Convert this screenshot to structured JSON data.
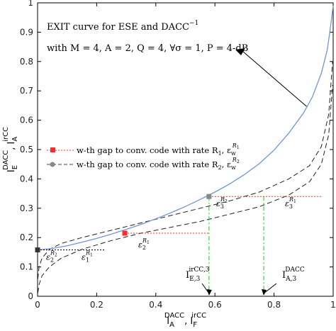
{
  "chart_data": {
    "type": "line",
    "xlabel_main": "I",
    "xlabel_sub1": "A",
    "xlabel_sup1": "DACC",
    "xlabel_mid": ", I",
    "xlabel_sub2": "F",
    "xlabel_sup2": "irCC",
    "ylabel_main": "I",
    "ylabel_sub1": "E",
    "ylabel_sup1": "DACC",
    "ylabel_mid": ", I",
    "ylabel_sub2": "A",
    "ylabel_sup2": "irCC",
    "xlim": [
      0,
      1
    ],
    "ylim": [
      0,
      1
    ],
    "xticks": [
      "0",
      "0.2",
      "0.4",
      "0.6",
      "0.8",
      "1"
    ],
    "yticks": [
      "0",
      "0.1",
      "0.2",
      "0.3",
      "0.4",
      "0.5",
      "0.6",
      "0.7",
      "0.8",
      "0.9",
      "1"
    ],
    "annotation_line1": "EXIT curve for ESE and DACC",
    "annotation_line1_sup": "−1",
    "annotation_line2": "with M = 4, A = 2, Q = 4, ∀σ = 1, P = 4-dB",
    "legend": [
      {
        "text": "w-th gap to conv. code with rate R",
        "sub": "1",
        "tail": ", ε",
        "tail_sub": "w",
        "tail_sup": "R",
        "tail_sup_sub": "1",
        "color": "#ff2a2a",
        "marker": "square"
      },
      {
        "text": "w-th gap to conv. code with rate R",
        "sub": "2",
        "tail": ", ε",
        "tail_sub": "w",
        "tail_sup": "R",
        "tail_sup_sub": "2",
        "color": "#444444",
        "marker": "circle"
      }
    ],
    "exit_curve": {
      "color": "#6f97d6",
      "x": [
        0,
        0.05,
        0.1,
        0.15,
        0.2,
        0.25,
        0.3,
        0.35,
        0.4,
        0.45,
        0.5,
        0.55,
        0.6,
        0.65,
        0.7,
        0.75,
        0.8,
        0.85,
        0.9,
        0.93,
        0.96,
        0.98,
        0.99,
        1.0
      ],
      "y": [
        0.158,
        0.163,
        0.172,
        0.184,
        0.197,
        0.212,
        0.228,
        0.245,
        0.264,
        0.284,
        0.306,
        0.33,
        0.355,
        0.383,
        0.415,
        0.452,
        0.498,
        0.556,
        0.625,
        0.68,
        0.76,
        0.84,
        0.91,
        0.99
      ]
    },
    "code_curve_R1": {
      "x": [
        0.001,
        0.005,
        0.015,
        0.04,
        0.08,
        0.15,
        0.25,
        0.35,
        0.45,
        0.55,
        0.65,
        0.75,
        0.85,
        0.92,
        0.96,
        0.985,
        0.998
      ],
      "y": [
        0.012,
        0.04,
        0.07,
        0.1,
        0.13,
        0.16,
        0.19,
        0.215,
        0.235,
        0.255,
        0.28,
        0.305,
        0.345,
        0.39,
        0.45,
        0.55,
        0.72
      ]
    },
    "code_curve_R2": {
      "x": [
        0.001,
        0.005,
        0.015,
        0.04,
        0.08,
        0.15,
        0.25,
        0.35,
        0.45,
        0.55,
        0.65,
        0.75,
        0.85,
        0.92,
        0.96,
        0.985,
        0.998
      ],
      "y": [
        0.06,
        0.1,
        0.13,
        0.16,
        0.18,
        0.2,
        0.225,
        0.25,
        0.275,
        0.3,
        0.325,
        0.355,
        0.4,
        0.445,
        0.51,
        0.62,
        0.8
      ]
    },
    "gaps": [
      {
        "y": 0.158,
        "x_start": 0,
        "x_end": 0.23,
        "marker_x": 0,
        "color": "#111111",
        "marker_color": "#333333",
        "label_left": "ε",
        "label_left_sub": "2",
        "label_left_sup": "R",
        "label_left_sup_sub": "2",
        "label_right": "ε",
        "label_right_sub": "1",
        "label_right_sup": "R",
        "label_right_sup_sub": "1"
      },
      {
        "y": 0.215,
        "x_start": 0.295,
        "x_end": 0.58,
        "marker_x": 0.295,
        "color": "#ff2a2a",
        "marker_color": "#ff2a2a",
        "label": "ε",
        "label_sub": "2",
        "label_sup": "R",
        "label_sup_sub": "1"
      },
      {
        "y": 0.34,
        "x_start": 0.58,
        "x_end": 0.96,
        "marker_x": 0.58,
        "color": "#ff2a2a",
        "marker_color": "#888888",
        "label_left": "ε",
        "label_left_sub": "3",
        "label_left_sup": "R",
        "label_left_sup_sub": "2",
        "label_right": "ε",
        "label_right_sub": "3",
        "label_right_sup": "R",
        "label_right_sup_sub": "1"
      }
    ],
    "vertical_marks": [
      {
        "x": 0.58,
        "label": "I",
        "label_sub": "E,3",
        "label_sup": "irCC,3"
      },
      {
        "x": 0.765,
        "label": "I",
        "label_sub": "A,3",
        "label_sup": "DACC"
      }
    ],
    "grid": false,
    "legend_position": "middle-left"
  }
}
